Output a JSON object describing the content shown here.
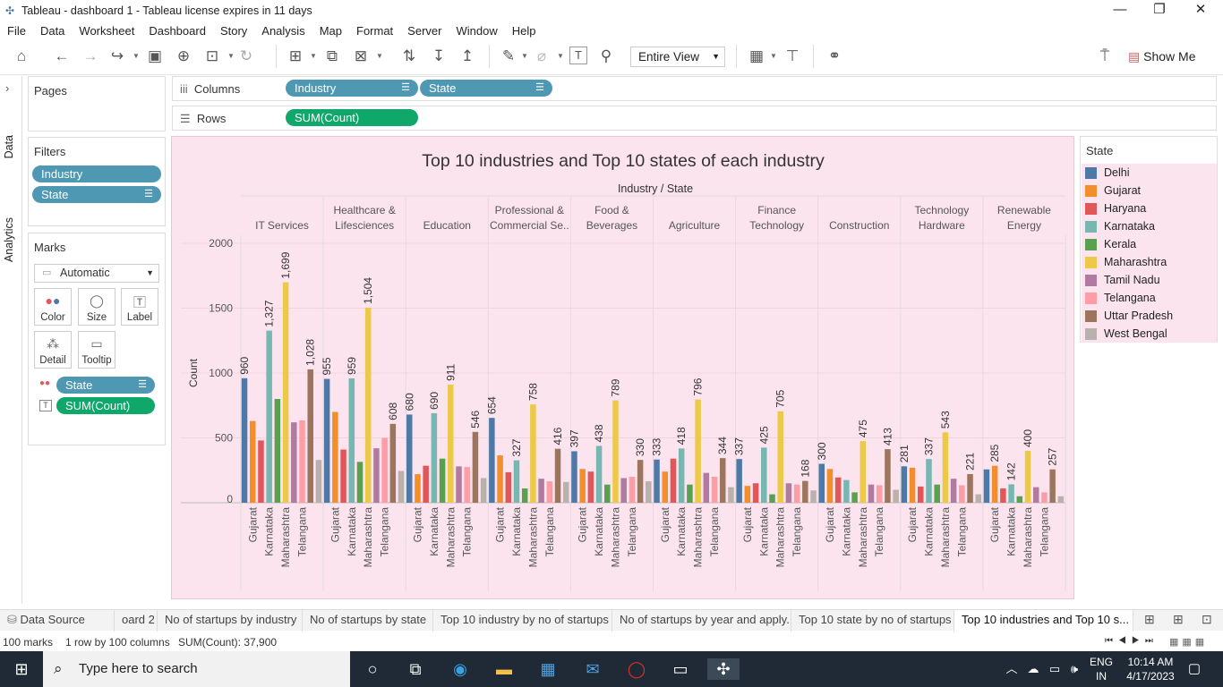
{
  "window": {
    "title": "Tableau - dashboard 1 - Tableau license expires in 11 days"
  },
  "menu": [
    "File",
    "Data",
    "Worksheet",
    "Dashboard",
    "Story",
    "Analysis",
    "Map",
    "Format",
    "Server",
    "Window",
    "Help"
  ],
  "toolbar": {
    "fit_label": "Entire View",
    "show_me_label": "Show Me"
  },
  "side_tabs": {
    "data": "Data",
    "analytics": "Analytics"
  },
  "pages_panel": {
    "title": "Pages"
  },
  "filters_panel": {
    "title": "Filters",
    "items": [
      "Industry",
      "State"
    ]
  },
  "marks_panel": {
    "title": "Marks",
    "mark_type": "Automatic",
    "buttons": [
      "Color",
      "Size",
      "Label",
      "Detail",
      "Tooltip"
    ],
    "fields": [
      "State",
      "SUM(Count)"
    ]
  },
  "shelves": {
    "columns_label": "Columns",
    "rows_label": "Rows",
    "columns_pills": [
      "Industry",
      "State"
    ],
    "rows_pill": "SUM(Count)"
  },
  "legend": {
    "title": "State",
    "items": [
      {
        "label": "Delhi",
        "color": "#4e79a7"
      },
      {
        "label": "Gujarat",
        "color": "#f28e2b"
      },
      {
        "label": "Haryana",
        "color": "#e15759"
      },
      {
        "label": "Karnataka",
        "color": "#76b7b2"
      },
      {
        "label": "Kerala",
        "color": "#59a14f"
      },
      {
        "label": "Maharashtra",
        "color": "#edc948"
      },
      {
        "label": "Tamil Nadu",
        "color": "#b07aa1"
      },
      {
        "label": "Telangana",
        "color": "#ff9da7"
      },
      {
        "label": "Uttar Pradesh",
        "color": "#9c755f"
      },
      {
        "label": "West Bengal",
        "color": "#bab0ac"
      }
    ]
  },
  "chart_data": {
    "type": "bar",
    "title": "Top 10 industries and Top 10 states of each industry",
    "header_label": "Industry / State",
    "ylabel": "Count",
    "ylim": [
      0,
      2000
    ],
    "yticks": [
      0,
      500,
      1000,
      1500,
      2000
    ],
    "grid": true,
    "states": [
      "Delhi",
      "Gujarat",
      "Haryana",
      "Karnataka",
      "Kerala",
      "Maharashtra",
      "Tamil Nadu",
      "Telangana",
      "Uttar Pradesh",
      "West Bengal"
    ],
    "x_tick_labels": [
      "Gujarat",
      "Karnataka",
      "Maharashtra",
      "Telangana"
    ],
    "labeled_states": [
      "Delhi",
      "Karnataka",
      "Maharashtra",
      "Uttar Pradesh"
    ],
    "industries": [
      {
        "name": [
          "IT Services"
        ],
        "values": [
          960,
          630,
          480,
          1327,
          800,
          1699,
          620,
          635,
          1028,
          330
        ]
      },
      {
        "name": [
          "Healthcare &",
          "Lifesciences"
        ],
        "values": [
          955,
          700,
          410,
          959,
          315,
          1504,
          420,
          500,
          608,
          245
        ]
      },
      {
        "name": [
          "Education"
        ],
        "values": [
          680,
          220,
          285,
          690,
          340,
          911,
          280,
          275,
          546,
          190
        ]
      },
      {
        "name": [
          "Professional &",
          "Commercial Se.."
        ],
        "values": [
          654,
          365,
          235,
          327,
          110,
          758,
          185,
          165,
          416,
          160
        ]
      },
      {
        "name": [
          "Food &",
          "Beverages"
        ],
        "values": [
          397,
          260,
          240,
          438,
          140,
          789,
          190,
          200,
          330,
          165
        ]
      },
      {
        "name": [
          "Agriculture"
        ],
        "values": [
          333,
          240,
          340,
          418,
          140,
          796,
          230,
          200,
          344,
          120
        ]
      },
      {
        "name": [
          "Finance",
          "Technology"
        ],
        "values": [
          337,
          130,
          150,
          425,
          65,
          705,
          150,
          140,
          168,
          95
        ]
      },
      {
        "name": [
          "Construction"
        ],
        "values": [
          300,
          260,
          195,
          175,
          80,
          475,
          140,
          135,
          413,
          100
        ]
      },
      {
        "name": [
          "Technology",
          "Hardware"
        ],
        "values": [
          281,
          270,
          125,
          337,
          140,
          543,
          185,
          135,
          221,
          65
        ]
      },
      {
        "name": [
          "Renewable",
          "Energy"
        ],
        "values": [
          257,
          285,
          110,
          142,
          50,
          400,
          120,
          80,
          257,
          50
        ]
      }
    ],
    "bar_labels": [
      [
        "960",
        "1,327",
        "1,699",
        "1,028"
      ],
      [
        "955",
        "959",
        "1,504",
        "608"
      ],
      [
        "680",
        "690",
        "911",
        "546"
      ],
      [
        "654",
        "327",
        "758",
        "416"
      ],
      [
        "397",
        "438",
        "789",
        "330"
      ],
      [
        "333",
        "418",
        "796",
        "344"
      ],
      [
        "337",
        "425",
        "705",
        "168"
      ],
      [
        "300",
        "",
        "475",
        "413"
      ],
      [
        "281",
        "337",
        "543",
        "221"
      ],
      [
        "",
        "142",
        "400",
        "257"
      ]
    ],
    "extra_labels": [
      {
        "industry": 9,
        "state": "Gujarat",
        "text": "285"
      }
    ]
  },
  "sheet_tabs": [
    "Data Source",
    "oard 2",
    "No of startups by industry",
    "No of startups by state",
    "Top 10 industry by no of startups",
    "No of startups by year and apply...",
    "Top 10 state by no of startups",
    "Top 10 industries and Top 10 s..."
  ],
  "status": {
    "marks": "100 marks",
    "rows_cols": "1 row by 100 columns",
    "sum": "SUM(Count): 37,900"
  },
  "taskbar": {
    "search_placeholder": "Type here to search",
    "lang": "ENG",
    "region": "IN",
    "time": "10:14 AM",
    "date": "4/17/2023"
  }
}
